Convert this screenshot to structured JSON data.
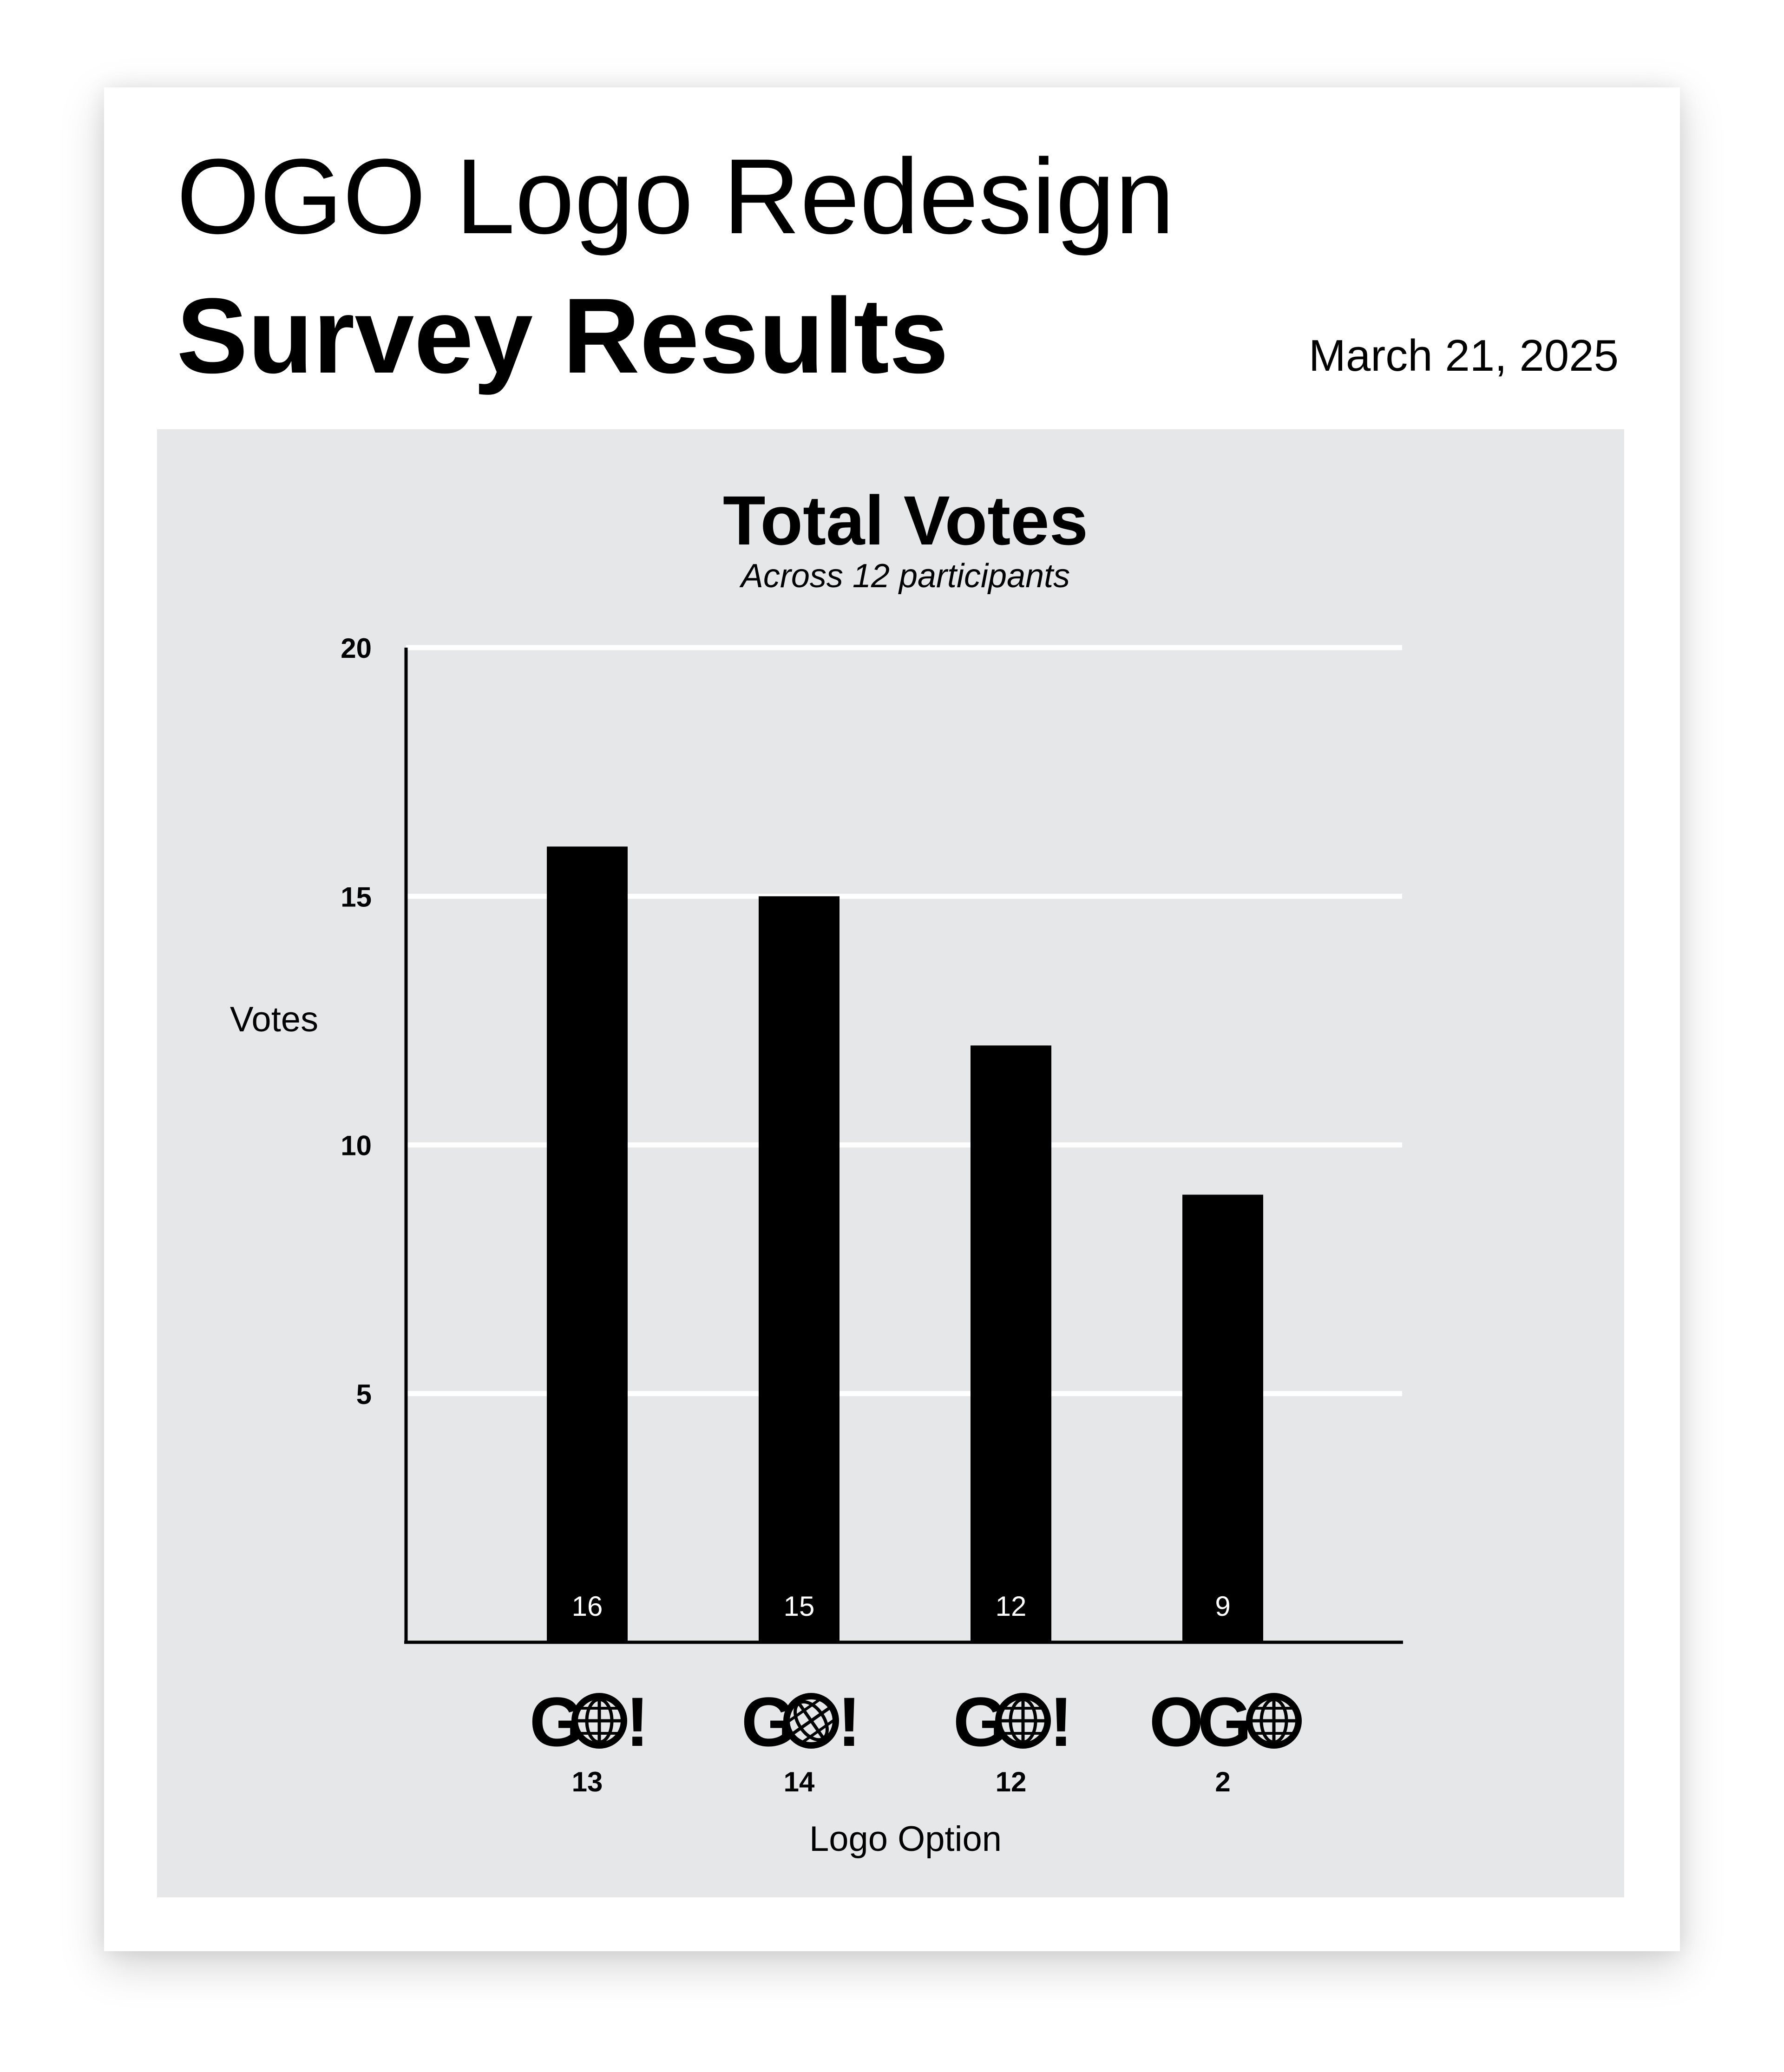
{
  "header": {
    "title_line1": "OGO Logo Redesign",
    "title_line2": "Survey Results",
    "date": "March 21, 2025"
  },
  "chart_data": {
    "type": "bar",
    "title": "Total Votes",
    "subtitle": "Across 12 participants",
    "xlabel": "Logo Option",
    "ylabel": "Votes",
    "categories": [
      "13",
      "14",
      "12",
      "2"
    ],
    "category_logos": [
      "go-globe-logo",
      "go-globe-tilted-logo",
      "go-globe-logo",
      "ogo-globe-logo"
    ],
    "values": [
      16,
      15,
      12,
      9
    ],
    "value_labels": [
      "16",
      "15",
      "12",
      "9"
    ],
    "ylim": [
      0,
      20
    ],
    "yticks": [
      5,
      10,
      15,
      20
    ],
    "ytick_labels": [
      "5",
      "10",
      "15",
      "20"
    ],
    "grid": true,
    "colors": {
      "bar": "#000000",
      "panel": "#e6e7e9",
      "grid": "#ffffff",
      "value_label": "#ffffff"
    }
  }
}
